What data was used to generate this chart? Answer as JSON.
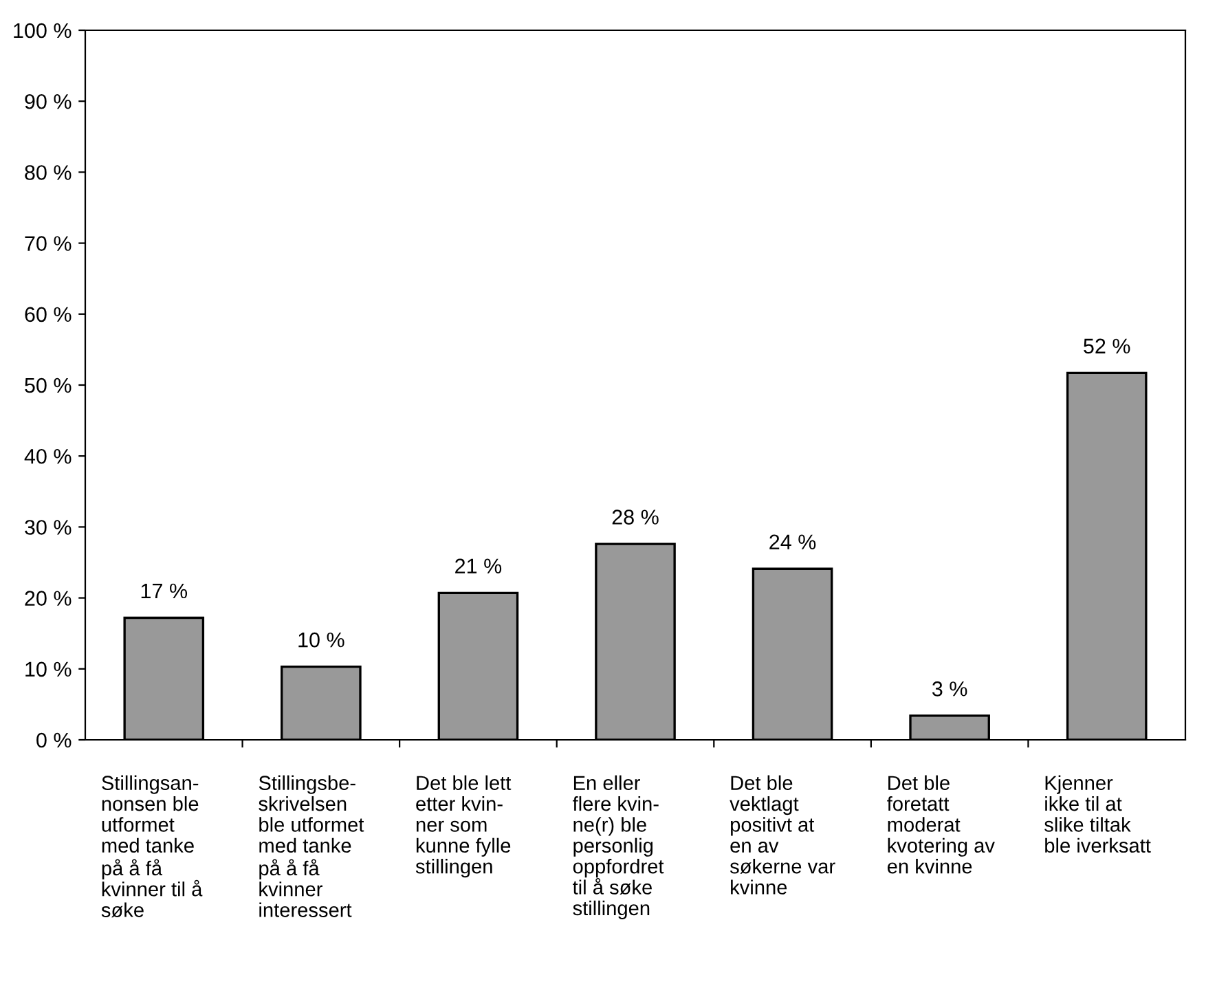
{
  "chart_data": {
    "type": "bar",
    "categories": [
      "Stillingsan-\nnonsen ble\nutformet\nmed tanke\npå å få\nkvinner til å\nsøke",
      "Stillingsbe-\nskrivelsen\nble utformet\nmed tanke\npå å få\nkvinner\ninteressert",
      "Det ble lett\netter kvin-\nner som\nkunne fylle\nstillingen",
      "En eller\nflere kvin-\nne(r) ble\npersonlig\noppfordret\ntil å søke\nstillingen",
      "Det ble\nvektlagt\npositivt at\nen av\nsøkerne var\nkvinne",
      "Det ble\nforetatt\nmoderat\nkvotering av\nen kvinne",
      "Kjenner\nikke til at\nslike tiltak\nble iverksatt"
    ],
    "values": [
      17.2,
      10.3,
      20.7,
      27.6,
      24.1,
      3.4,
      51.7
    ],
    "value_labels": [
      "17 %",
      "10 %",
      "21 %",
      "28 %",
      "24 %",
      "3 %",
      "52 %"
    ],
    "color": "#999999",
    "ylim": [
      0,
      100
    ],
    "yticks": [
      {
        "value": 0,
        "label": "0 %"
      },
      {
        "value": 10,
        "label": "10 %"
      },
      {
        "value": 20,
        "label": "20 %"
      },
      {
        "value": 30,
        "label": "30 %"
      },
      {
        "value": 40,
        "label": "40 %"
      },
      {
        "value": 50,
        "label": "50 %"
      },
      {
        "value": 60,
        "label": "60 %"
      },
      {
        "value": 70,
        "label": "70 %"
      },
      {
        "value": 80,
        "label": "80 %"
      },
      {
        "value": 90,
        "label": "90 %"
      },
      {
        "value": 100,
        "label": "100 %"
      }
    ],
    "grid": false,
    "legend": false
  }
}
